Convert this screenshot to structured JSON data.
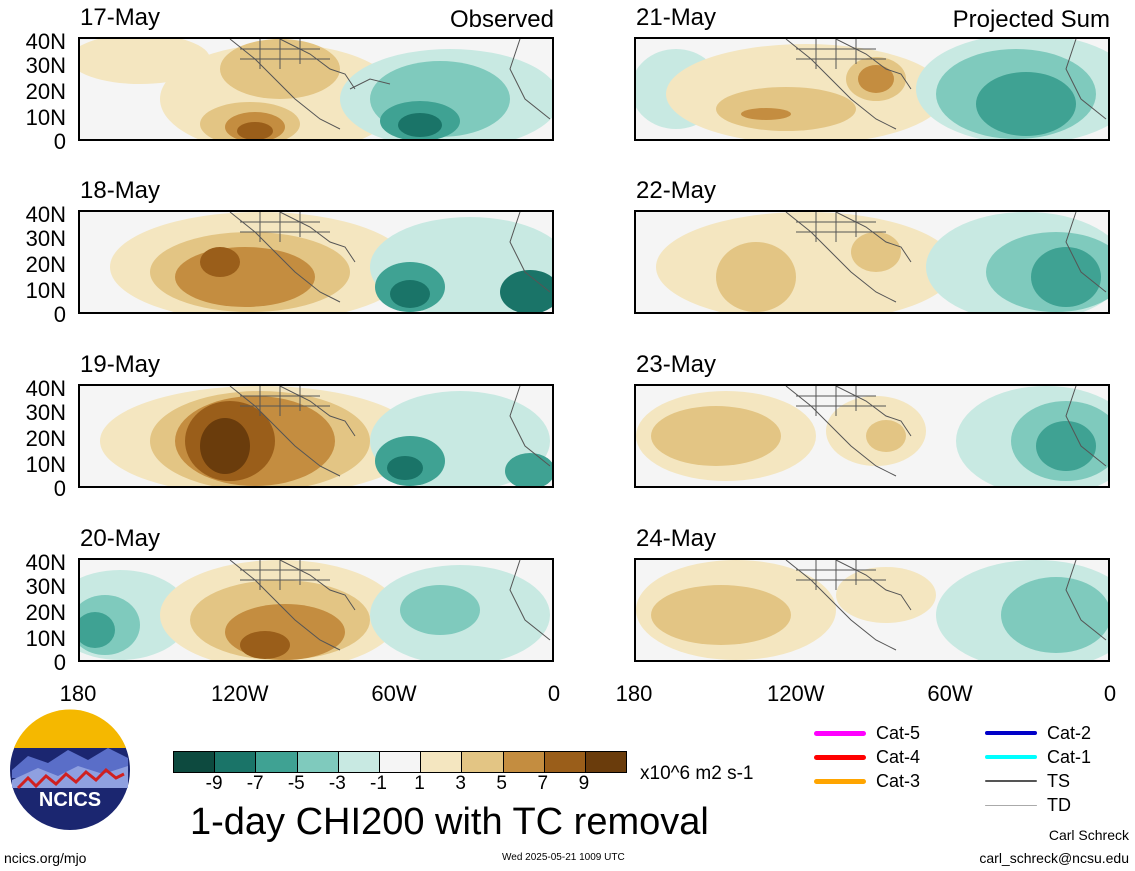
{
  "panels": [
    {
      "date": "17-May",
      "tag": "Observed"
    },
    {
      "date": "18-May",
      "tag": ""
    },
    {
      "date": "19-May",
      "tag": ""
    },
    {
      "date": "20-May",
      "tag": ""
    },
    {
      "date": "21-May",
      "tag": "Projected Sum"
    },
    {
      "date": "22-May",
      "tag": ""
    },
    {
      "date": "23-May",
      "tag": ""
    },
    {
      "date": "24-May",
      "tag": ""
    }
  ],
  "lat_labels": [
    "40N",
    "30N",
    "20N",
    "10N",
    "0"
  ],
  "lon_labels": [
    "180",
    "120W",
    "60W",
    "0"
  ],
  "colorbar": {
    "colors": [
      "#0d4a3f",
      "#1a7468",
      "#3fa293",
      "#7fcabd",
      "#c8e9e2",
      "#f5f5f5",
      "#f4e6c0",
      "#e3c584",
      "#c48d40",
      "#9a5e1a",
      "#6a3c0c"
    ],
    "ticks": [
      "-9",
      "-7",
      "-5",
      "-3",
      "-1",
      "1",
      "3",
      "5",
      "7",
      "9"
    ],
    "unit": "x10^6 m2 s-1"
  },
  "main_title": "1-day CHI200 with TC removal",
  "logo_text": "NCICS",
  "footer": {
    "url": "ncics.org/mjo",
    "timestamp": "Wed 2025-05-21 1009 UTC",
    "author": "Carl Schreck",
    "email": "carl_schreck@ncsu.edu"
  },
  "tc_legend": [
    {
      "label": "Cat-5",
      "color": "#ff00ff"
    },
    {
      "label": "Cat-4",
      "color": "#ff0000"
    },
    {
      "label": "Cat-3",
      "color": "#ffa500"
    },
    {
      "label": "Cat-2",
      "color": "#0000c8"
    },
    {
      "label": "Cat-1",
      "color": "#00ffff"
    },
    {
      "label": "TS",
      "color": "#555555"
    },
    {
      "label": "TD",
      "color": "#aaaaaa"
    }
  ]
}
